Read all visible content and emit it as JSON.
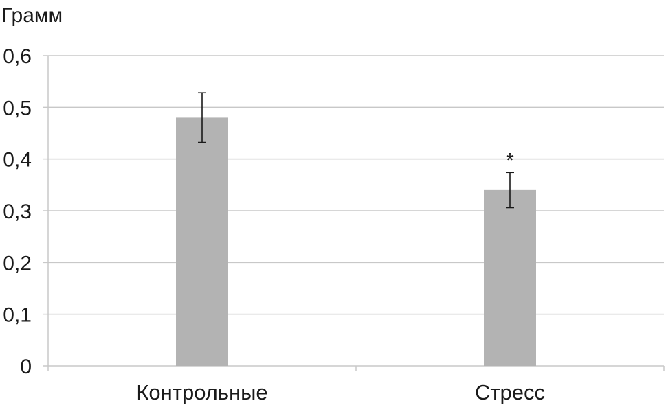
{
  "chart_data": {
    "type": "bar",
    "title": "",
    "ylabel": "Грамм",
    "xlabel": "",
    "categories": [
      "Контрольные",
      "Стресс"
    ],
    "values": [
      0.48,
      0.34
    ],
    "error": [
      0.048,
      0.034
    ],
    "annotations": [
      "",
      "*"
    ],
    "ylim": [
      0,
      0.6
    ],
    "yticks": [
      "0",
      "0,1",
      "0,2",
      "0,3",
      "0,4",
      "0,5",
      "0,6"
    ],
    "ytick_values": [
      0,
      0.1,
      0.2,
      0.3,
      0.4,
      0.5,
      0.6
    ],
    "grid": true,
    "legend": "none",
    "bar_color": "#b3b3b3",
    "grid_color": "#c8c8c8",
    "errorbar_color": "#1a1a1a"
  }
}
